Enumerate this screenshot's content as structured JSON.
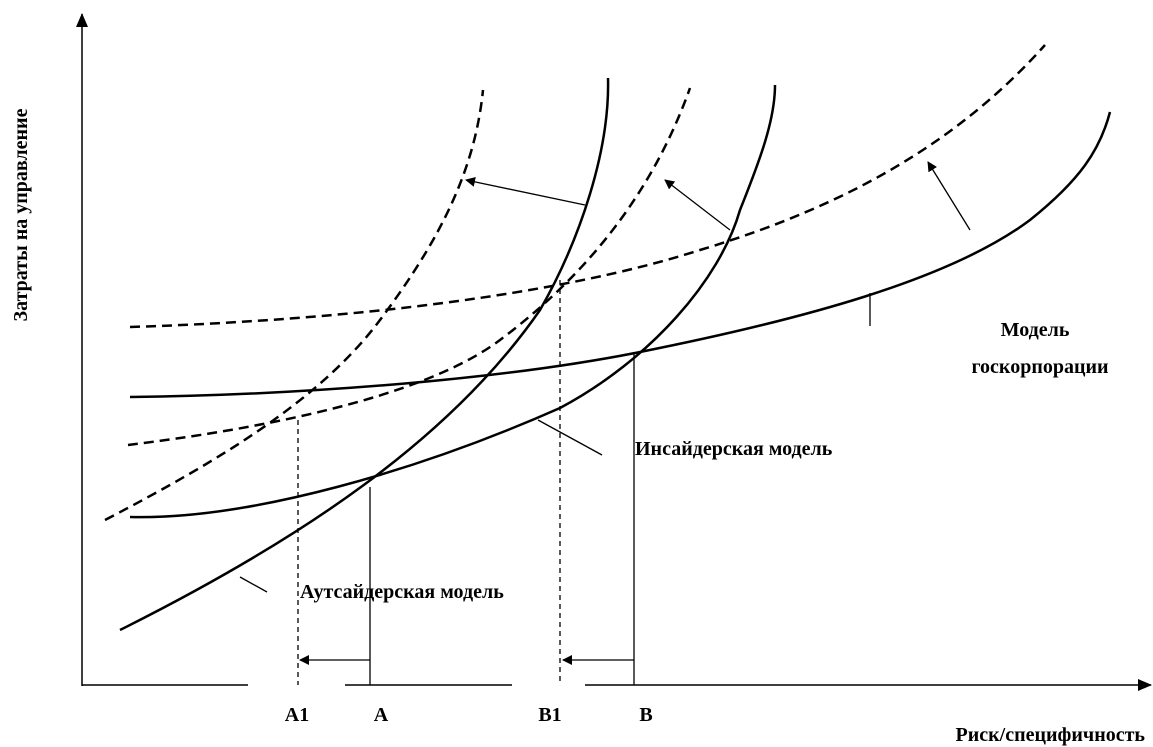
{
  "y_axis_label": "Затраты на управление",
  "x_axis_label": "Риск/специфичность",
  "labels": {
    "gos_line1": "Модель",
    "gos_line2": "госкорпорации",
    "insider": "Инсайдерская модель",
    "outsider": "Аутсайдерская модель"
  },
  "ticks": [
    "A1",
    "A",
    "B1",
    "B"
  ]
}
